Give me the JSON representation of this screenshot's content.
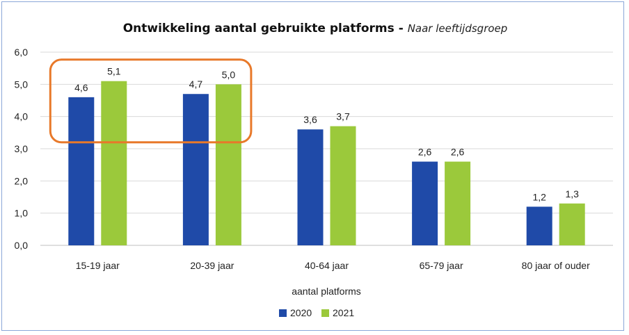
{
  "chart_data": {
    "type": "bar",
    "title": "Ontwikkeling aantal gebruikte platforms",
    "title_separator": " - ",
    "subtitle": "Naar leeftijdsgroep",
    "xlabel": "aantal platforms",
    "ylabel": "",
    "ylim": [
      0,
      6
    ],
    "yticks": [
      "0,0",
      "1,0",
      "2,0",
      "3,0",
      "4,0",
      "5,0",
      "6,0"
    ],
    "grid": true,
    "legend_position": "bottom",
    "categories": [
      "15-19 jaar",
      "20-39 jaar",
      "40-64 jaar",
      "65-79 jaar",
      "80 jaar of ouder"
    ],
    "series": [
      {
        "name": "2020",
        "color": "#1f4aa8",
        "values": [
          4.6,
          4.7,
          3.6,
          2.6,
          1.2
        ],
        "labels": [
          "4,6",
          "4,7",
          "3,6",
          "2,6",
          "1,2"
        ]
      },
      {
        "name": "2021",
        "color": "#9bc93b",
        "values": [
          5.1,
          5.0,
          3.7,
          2.6,
          1.3
        ],
        "labels": [
          "5,1",
          "5,0",
          "3,7",
          "2,6",
          "1,3"
        ]
      }
    ],
    "annotation": {
      "type": "highlight-box",
      "color": "#e8792a",
      "categories": [
        "15-19 jaar",
        "20-39 jaar"
      ]
    }
  }
}
